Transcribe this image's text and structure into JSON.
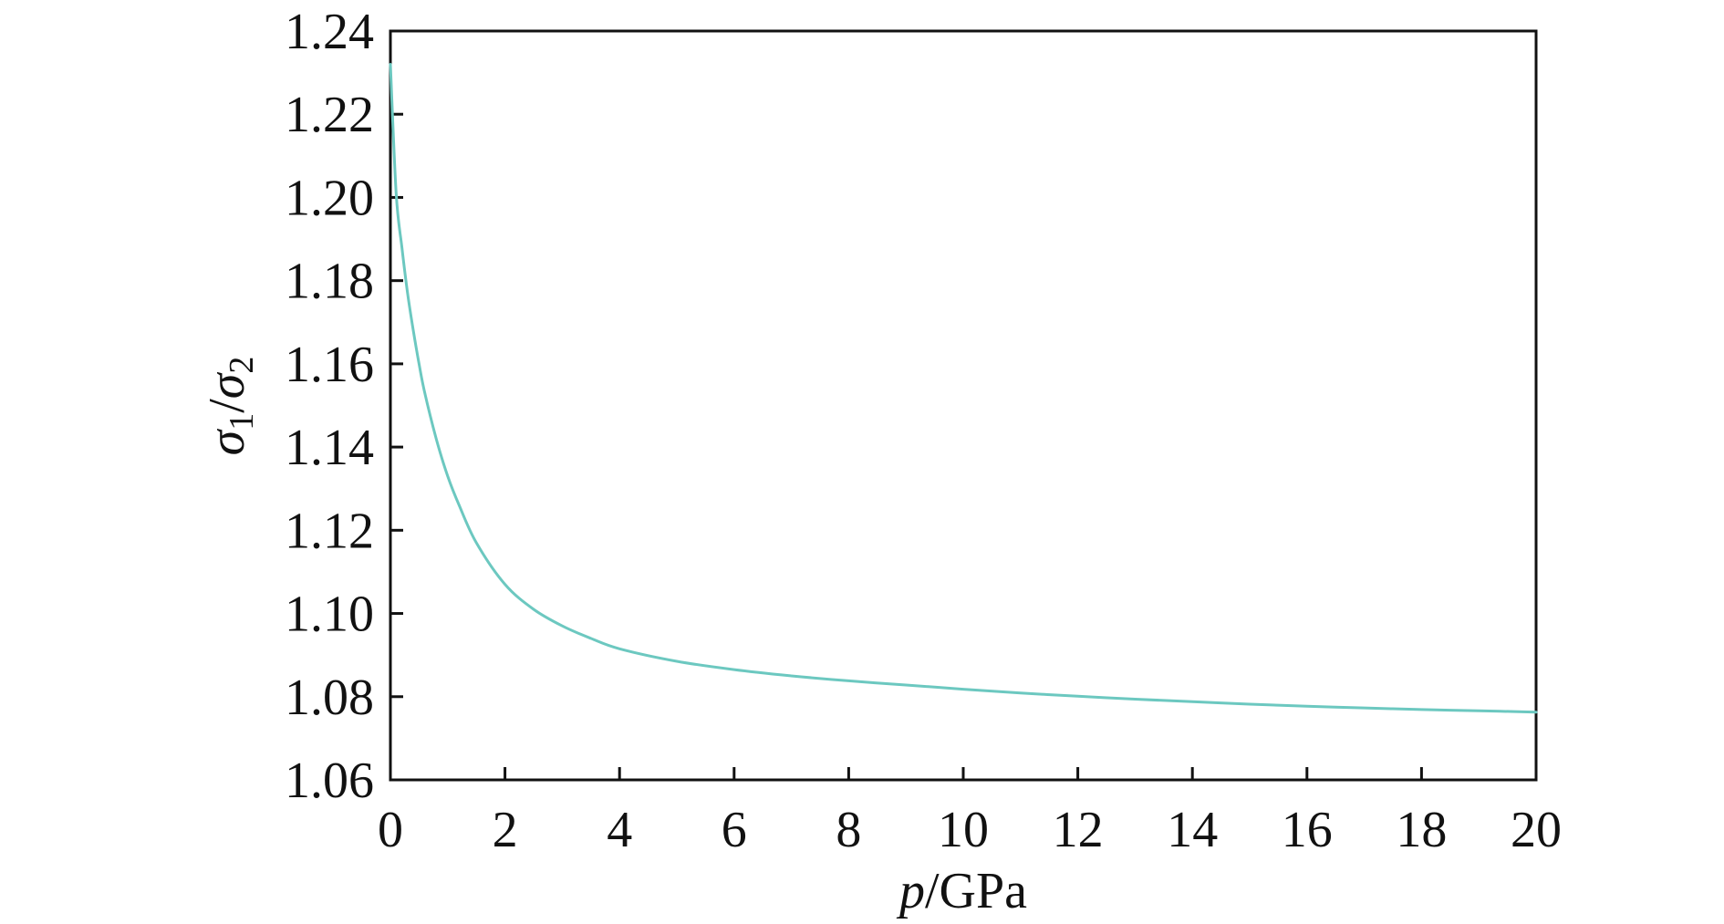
{
  "chart_data": {
    "type": "line",
    "title": "",
    "xlabel": {
      "var": "p",
      "unit": "/GPa"
    },
    "ylabel": {
      "num": "σ",
      "num_sub": "1",
      "slash": "/",
      "den": "σ",
      "den_sub": "2"
    },
    "xlim": [
      0,
      20
    ],
    "ylim": [
      1.06,
      1.24
    ],
    "x_ticks": [
      "0",
      "2",
      "4",
      "6",
      "8",
      "10",
      "12",
      "14",
      "16",
      "18",
      "20"
    ],
    "y_ticks": [
      "1.06",
      "1.08",
      "1.10",
      "1.12",
      "1.14",
      "1.16",
      "1.18",
      "1.20",
      "1.22",
      "1.24"
    ],
    "grid": false,
    "legend": "none",
    "line_color": "#6cc8c0",
    "series": [
      {
        "x": [
          0,
          0.1,
          0.2,
          0.3,
          0.4,
          0.5,
          0.6,
          0.8,
          1.0,
          1.2,
          1.5,
          2.0,
          2.5,
          3.0,
          3.5,
          4.0,
          5.0,
          6.0,
          7.0,
          8.0,
          9.0,
          10.0,
          11.0,
          12.0,
          13.0,
          14.0,
          15.0,
          16.0,
          17.0,
          18.0,
          19.0,
          20.0
        ],
        "y": [
          1.232,
          1.201,
          1.188,
          1.177,
          1.168,
          1.16,
          1.153,
          1.142,
          1.133,
          1.126,
          1.117,
          1.107,
          1.101,
          1.097,
          1.094,
          1.0915,
          1.0885,
          1.0865,
          1.085,
          1.0838,
          1.0828,
          1.0818,
          1.0809,
          1.0801,
          1.0794,
          1.0788,
          1.0782,
          1.0777,
          1.0773,
          1.0769,
          1.0766,
          1.0763
        ]
      }
    ]
  }
}
